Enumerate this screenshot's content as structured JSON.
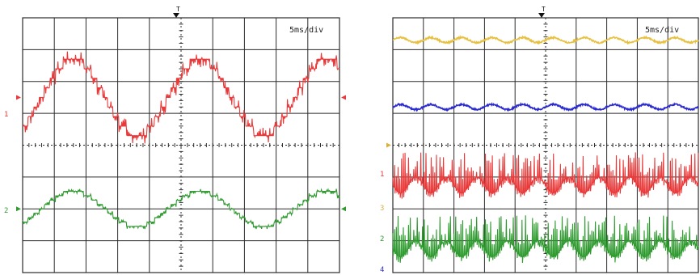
{
  "chart_data": [
    {
      "type": "line",
      "time_div": "5ms/div",
      "grid": true,
      "trigger_label": "T",
      "x_divisions": 10,
      "y_divisions": 8,
      "series": [
        {
          "channel": "1",
          "color": "#e83a3a",
          "marker_arrow": "left-right",
          "waveform": "stepped-sine",
          "periods": 2.5,
          "phase": 0.15,
          "offset_div": 1.5,
          "amplitude_div": 1.2,
          "pwm_noise_div": 0.25
        },
        {
          "channel": "2",
          "color": "#2f9a2f",
          "marker_arrow": "right",
          "waveform": "stepped-sine",
          "periods": 2.5,
          "phase": 0.15,
          "offset_div": -2.0,
          "amplitude_div": 0.55,
          "pwm_noise_div": 0.08
        }
      ]
    },
    {
      "type": "line",
      "time_div": "5ms/div",
      "grid": true,
      "trigger_label": "T",
      "x_divisions": 10,
      "y_divisions": 8,
      "series": [
        {
          "channel": "",
          "color": "#e8c040",
          "waveform": "rippled-dc",
          "offset_div": 3.3,
          "ripple_div": 0.08,
          "ripple_periods": 10
        },
        {
          "channel": "",
          "color": "#2a2ad0",
          "waveform": "rippled-dc",
          "offset_div": 1.2,
          "ripple_div": 0.08,
          "ripple_periods": 10
        },
        {
          "channel": "1",
          "color": "#e83a3a",
          "waveform": "switching",
          "offset_div": -1.0,
          "ripple_div": 0.5,
          "spike_div": 1.0,
          "ripple_periods": 5
        },
        {
          "channel": "2",
          "color": "#2f9a2f",
          "waveform": "switching",
          "offset_div": -3.0,
          "ripple_div": 0.5,
          "spike_div": 1.0,
          "ripple_periods": 5
        }
      ],
      "left_markers": [
        {
          "label": "1",
          "color": "#e83a3a"
        },
        {
          "label": "3",
          "color": "#d8b040"
        },
        {
          "label": "2",
          "color": "#2f9a2f"
        },
        {
          "label": "4",
          "color": "#3030c0"
        }
      ]
    }
  ]
}
